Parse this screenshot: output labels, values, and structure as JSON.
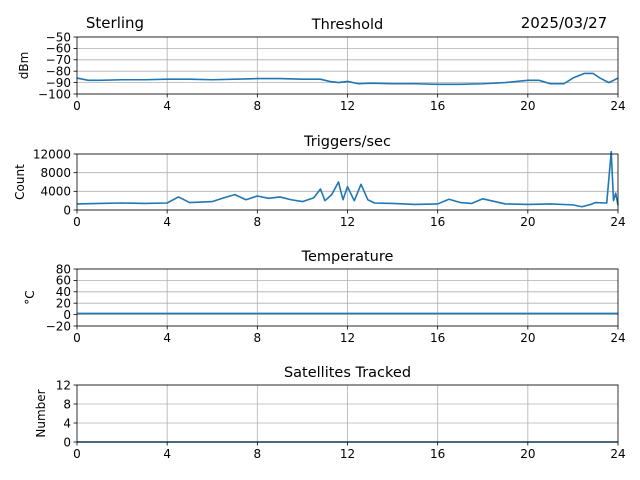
{
  "header": {
    "site": "Sterling",
    "date": "2025/03/27"
  },
  "colors": {
    "series": "#1f77b4",
    "grid": "#b0b0b0"
  },
  "chart_data": [
    {
      "type": "line",
      "title": "Threshold",
      "ylabel": "dBm",
      "xlim": [
        0,
        24
      ],
      "ylim": [
        -100,
        -50
      ],
      "xticks": [
        0,
        4,
        8,
        12,
        16,
        20,
        24
      ],
      "yticks": [
        -100,
        -90,
        -80,
        -70,
        -60,
        -50
      ],
      "ytick_labels": [
        "−100",
        "−90",
        "−80",
        "−70",
        "−60",
        "−50"
      ],
      "grid": true,
      "series": [
        {
          "x": [
            0,
            0.5,
            1,
            2,
            3,
            4,
            5,
            6,
            7,
            8,
            9,
            10,
            10.8,
            11.2,
            11.6,
            12,
            12.5,
            13,
            14,
            15,
            16,
            17,
            18,
            19,
            20,
            20.5,
            21,
            21.6,
            22,
            22.5,
            22.9,
            23.2,
            23.6,
            24
          ],
          "y": [
            -86,
            -88,
            -88,
            -87.5,
            -87.5,
            -87,
            -87,
            -87.5,
            -87,
            -86.5,
            -86.5,
            -87,
            -87,
            -89,
            -90,
            -89,
            -91,
            -90.5,
            -91,
            -91,
            -91.5,
            -91.5,
            -91,
            -90,
            -88,
            -88,
            -91,
            -91,
            -86,
            -82,
            -82,
            -86,
            -90,
            -86
          ]
        }
      ]
    },
    {
      "type": "line",
      "title": "Triggers/sec",
      "ylabel": "Count",
      "xlim": [
        0,
        24
      ],
      "ylim": [
        0,
        12000
      ],
      "xticks": [
        0,
        4,
        8,
        12,
        16,
        20,
        24
      ],
      "yticks": [
        0,
        4000,
        8000,
        12000
      ],
      "grid": true,
      "series": [
        {
          "x": [
            0,
            1,
            2,
            3,
            4,
            4.5,
            5,
            6,
            6.5,
            7,
            7.5,
            8,
            8.5,
            9,
            9.5,
            10,
            10.5,
            10.8,
            11,
            11.3,
            11.6,
            11.8,
            12,
            12.3,
            12.6,
            12.9,
            13.2,
            14,
            15,
            16,
            16.5,
            17,
            17.5,
            18,
            19,
            20,
            21,
            22,
            22.4,
            22.8,
            23,
            23.5,
            23.7,
            23.8,
            23.9,
            24
          ],
          "y": [
            1300,
            1400,
            1500,
            1400,
            1500,
            2800,
            1600,
            1800,
            2600,
            3300,
            2200,
            3000,
            2500,
            2800,
            2200,
            1800,
            2600,
            4500,
            2000,
            3300,
            6000,
            2200,
            5000,
            2000,
            5500,
            2200,
            1500,
            1400,
            1200,
            1300,
            2300,
            1600,
            1400,
            2400,
            1300,
            1200,
            1300,
            1100,
            700,
            1200,
            1600,
            1500,
            12500,
            2000,
            3600,
            1000
          ]
        }
      ]
    },
    {
      "type": "line",
      "title": "Temperature",
      "ylabel": "°C",
      "xlim": [
        0,
        24
      ],
      "ylim": [
        -20,
        80
      ],
      "xticks": [
        0,
        4,
        8,
        12,
        16,
        20,
        24
      ],
      "yticks": [
        -20,
        0,
        20,
        40,
        60,
        80
      ],
      "ytick_labels": [
        "−20",
        "0",
        "20",
        "40",
        "60",
        "80"
      ],
      "grid": true,
      "series": [
        {
          "x": [
            0,
            24
          ],
          "y": [
            2,
            2
          ]
        }
      ]
    },
    {
      "type": "line",
      "title": "Satellites Tracked",
      "ylabel": "Number",
      "xlim": [
        0,
        24
      ],
      "ylim": [
        0,
        12
      ],
      "xticks": [
        0,
        4,
        8,
        12,
        16,
        20,
        24
      ],
      "yticks": [
        0,
        4,
        8,
        12
      ],
      "grid": true,
      "series": [
        {
          "x": [
            0,
            24
          ],
          "y": [
            0,
            0
          ]
        }
      ]
    }
  ]
}
